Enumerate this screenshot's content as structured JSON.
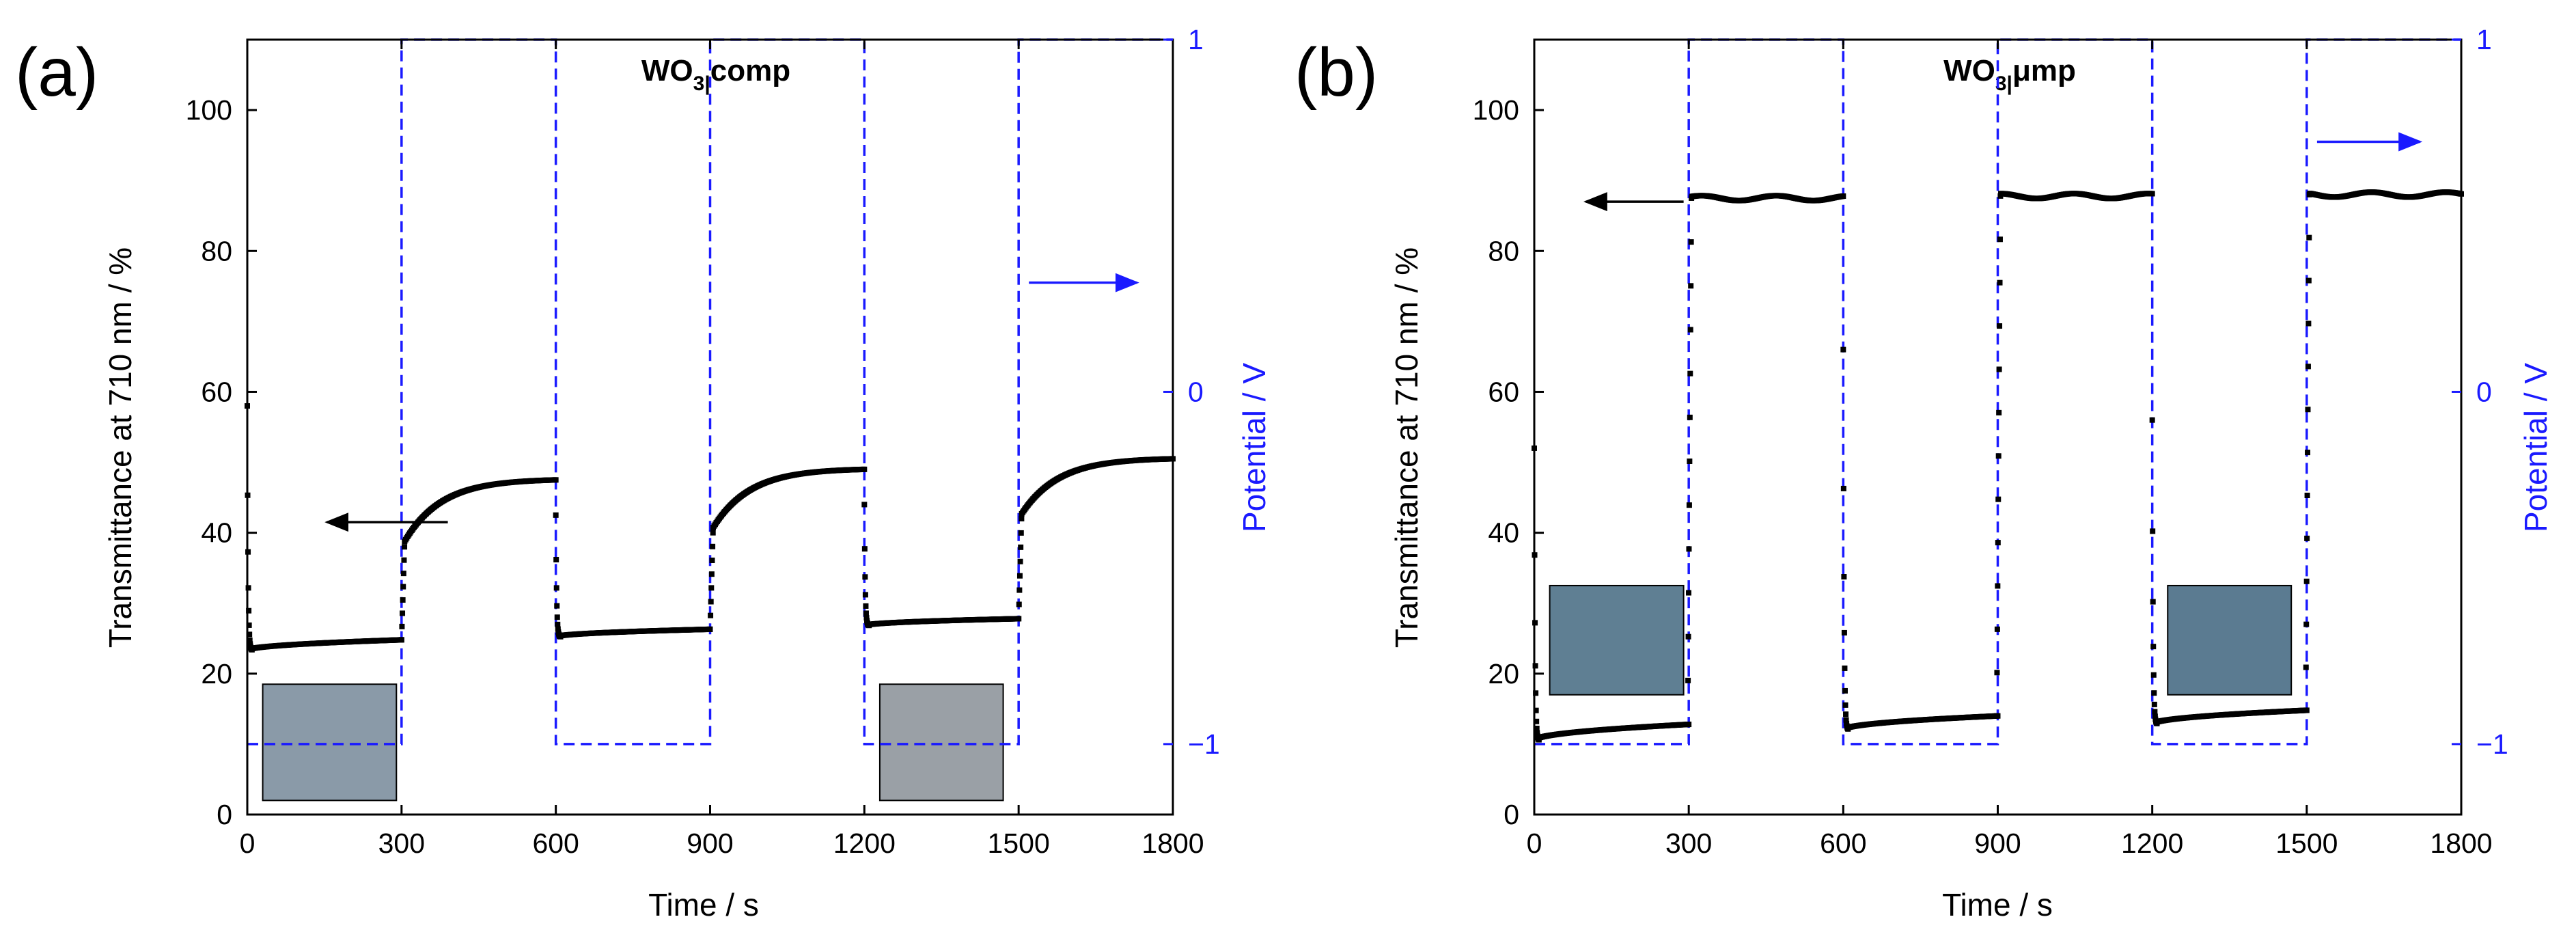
{
  "colors": {
    "potential": "#1a1aff",
    "transmittance": "#000000",
    "arrow_transmittance": "#000000",
    "arrow_potential": "#1a1aff"
  },
  "chart_data": [
    {
      "type": "scatter",
      "panel_label": "(a)",
      "title_main": "WO",
      "title_sub": "3|",
      "title_rest": "comp",
      "xlabel": "Time / s",
      "ylabel_left": "Transmittance at 710 nm / %",
      "ylabel_right": "Potential / V",
      "xlim": [
        0,
        1800
      ],
      "ylim_left": [
        0,
        110
      ],
      "ylim_right": [
        -1.2,
        1.0
      ],
      "xticks": [
        0,
        300,
        600,
        900,
        1200,
        1500,
        1800
      ],
      "yticks_left": [
        0,
        20,
        40,
        60,
        80,
        100
      ],
      "yticks_right": [
        -1,
        0,
        1
      ],
      "ytick_labels_right": [
        "−1",
        "0",
        "1"
      ],
      "potential_series": {
        "name": "Potential",
        "times": [
          0,
          300,
          600,
          900,
          1200,
          1500,
          1800
        ],
        "levels": [
          -1,
          1,
          -1,
          1,
          -1,
          1
        ]
      },
      "transmittance_series": {
        "name": "Transmittance",
        "segments": [
          {
            "start": 0,
            "end": 300,
            "mode": "coloring",
            "spike": 58,
            "base": 23.3,
            "final": 24.8
          },
          {
            "start": 300,
            "end": 600,
            "mode": "bleaching",
            "from": 24.8,
            "jump": 38.0,
            "final": 47.5
          },
          {
            "start": 600,
            "end": 900,
            "mode": "coloring",
            "spike": 42.5,
            "base": 25.2,
            "final": 26.3
          },
          {
            "start": 900,
            "end": 1200,
            "mode": "bleaching",
            "from": 26.3,
            "jump": 40.0,
            "final": 49.0
          },
          {
            "start": 1200,
            "end": 1500,
            "mode": "coloring",
            "spike": 44.0,
            "base": 26.8,
            "final": 27.8
          },
          {
            "start": 1500,
            "end": 1800,
            "mode": "bleaching",
            "from": 27.8,
            "jump": 42.0,
            "final": 50.5
          }
        ]
      },
      "insets": [
        {
          "color": "#8a9aa8",
          "x0": 30,
          "x1": 290,
          "y_top": 18.5,
          "y_bottom": 2
        },
        {
          "color": "#9aa0a6",
          "x0": 1230,
          "x1": 1470,
          "y_top": 18.5,
          "y_bottom": 2
        }
      ],
      "arrows": [
        {
          "axis": "left",
          "from_x": 390,
          "to_x": 155,
          "y": 41.5
        },
        {
          "axis": "right",
          "from_x": 1520,
          "to_x": 1730,
          "y": 75.5
        }
      ]
    },
    {
      "type": "scatter",
      "panel_label": "(b)",
      "title_main": "WO",
      "title_sub": "3|",
      "title_rest": "μmp",
      "xlabel": "Time / s",
      "ylabel_left": "Transmittance at 710 nm / %",
      "ylabel_right": "Potential / V",
      "xlim": [
        0,
        1800
      ],
      "ylim_left": [
        0,
        110
      ],
      "ylim_right": [
        -1.2,
        1.0
      ],
      "xticks": [
        0,
        300,
        600,
        900,
        1200,
        1500,
        1800
      ],
      "yticks_left": [
        0,
        20,
        40,
        60,
        80,
        100
      ],
      "yticks_right": [
        -1,
        0,
        1
      ],
      "ytick_labels_right": [
        "−1",
        "0",
        "1"
      ],
      "potential_series": {
        "name": "Potential",
        "times": [
          0,
          300,
          600,
          900,
          1200,
          1500,
          1800
        ],
        "levels": [
          -1,
          1,
          -1,
          1,
          -1,
          1
        ]
      },
      "transmittance_series": {
        "name": "Transmittance",
        "segments": [
          {
            "start": 0,
            "end": 300,
            "mode": "coloring",
            "spike": 52,
            "base": 10.5,
            "final": 12.8
          },
          {
            "start": 300,
            "end": 600,
            "mode": "bleaching_fast",
            "from": 12.8,
            "final": 87.5
          },
          {
            "start": 600,
            "end": 900,
            "mode": "coloring",
            "spike": 66,
            "base": 12.0,
            "final": 14.0
          },
          {
            "start": 900,
            "end": 1200,
            "mode": "bleaching_fast",
            "from": 14.0,
            "final": 87.8
          },
          {
            "start": 1200,
            "end": 1500,
            "mode": "coloring",
            "spike": 56,
            "base": 12.8,
            "final": 14.8
          },
          {
            "start": 1500,
            "end": 1800,
            "mode": "bleaching_fast",
            "from": 14.8,
            "final": 88.0
          }
        ]
      },
      "insets": [
        {
          "color": "#5f7f93",
          "x0": 30,
          "x1": 290,
          "y_top": 32.5,
          "y_bottom": 17
        },
        {
          "color": "#5b7b91",
          "x0": 1230,
          "x1": 1470,
          "y_top": 32.5,
          "y_bottom": 17
        }
      ],
      "arrows": [
        {
          "axis": "left",
          "from_x": 290,
          "to_x": 100,
          "y": 87.0
        },
        {
          "axis": "right",
          "from_x": 1520,
          "to_x": 1720,
          "y": 95.5
        }
      ]
    }
  ]
}
